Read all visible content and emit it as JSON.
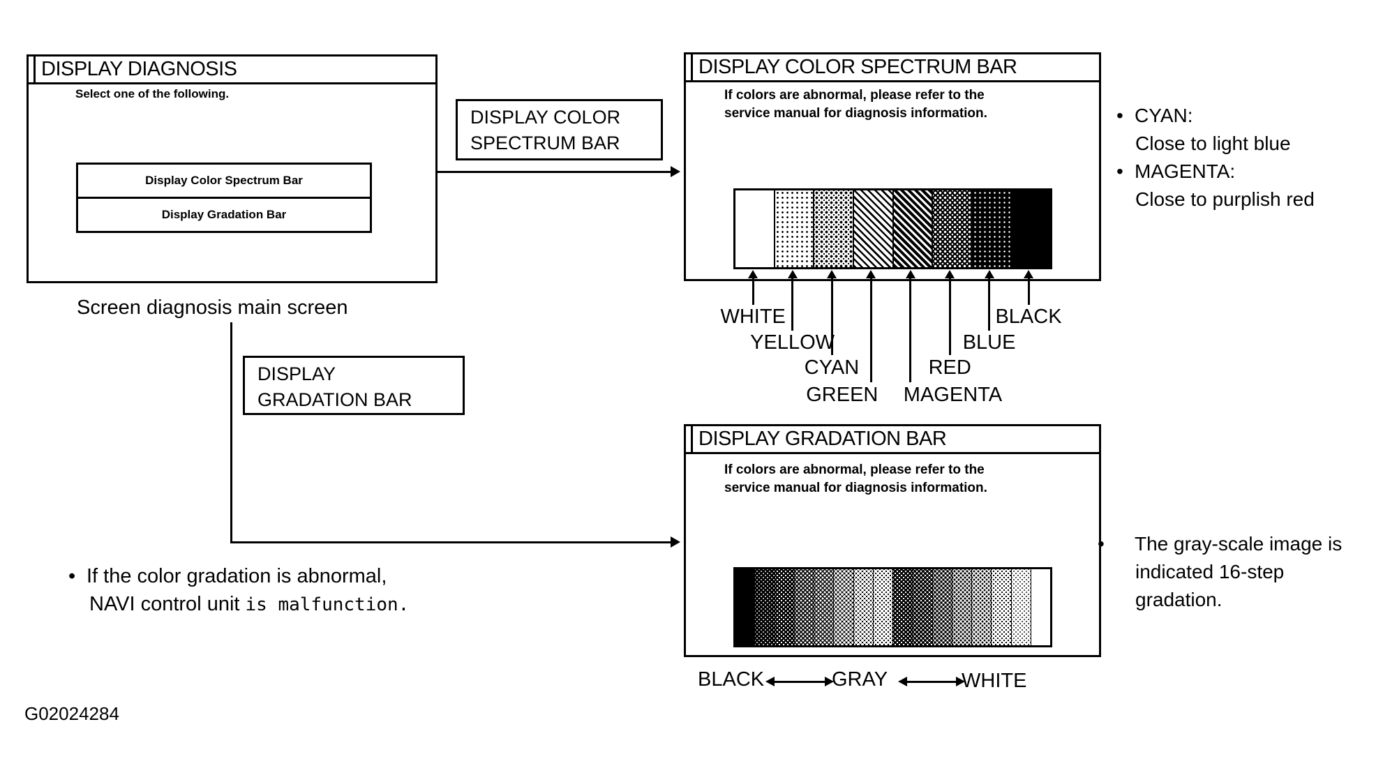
{
  "figure_id": "G02024284",
  "ui": {
    "bullet": "•"
  },
  "main_screen": {
    "title": "DISPLAY DIAGNOSIS",
    "prompt": "Select one of the following.",
    "buttons": [
      {
        "label": "Display Color Spectrum Bar"
      },
      {
        "label": "Display Gradation Bar"
      }
    ],
    "caption": "Screen diagnosis main screen"
  },
  "flow_labels": {
    "to_spectrum": {
      "line1": "DISPLAY COLOR",
      "line2": "SPECTRUM BAR"
    },
    "to_gradation": {
      "line1": "DISPLAY",
      "line2": "GRADATION BAR"
    }
  },
  "spectrum_screen": {
    "title": "DISPLAY COLOR SPECTRUM BAR",
    "body_line1": "If colors are abnormal, please refer to the",
    "body_line2": "service manual for diagnosis information.",
    "segments": [
      {
        "label": "WHITE",
        "shade_level": 0
      },
      {
        "label": "YELLOW",
        "shade_level": 1
      },
      {
        "label": "CYAN",
        "shade_level": 2
      },
      {
        "label": "GREEN",
        "shade_level": 3
      },
      {
        "label": "MAGENTA",
        "shade_level": 4
      },
      {
        "label": "RED",
        "shade_level": 5
      },
      {
        "label": "BLUE",
        "shade_level": 6
      },
      {
        "label": "BLACK",
        "shade_level": 7
      }
    ],
    "notes": [
      {
        "term": "CYAN:",
        "desc": "Close to light blue"
      },
      {
        "term": "MAGENTA:",
        "desc": "Close to purplish red"
      }
    ]
  },
  "gradation_screen": {
    "title": "DISPLAY GRADATION BAR",
    "body_line1": "If colors are abnormal, please refer to the",
    "body_line2": "service manual for diagnosis information.",
    "steps": 16,
    "scale_labels": [
      "BLACK",
      "GRAY",
      "WHITE"
    ],
    "note": "The gray-scale image is indicated 16-step gradation."
  },
  "malfunction_note": {
    "line1": "If the color gradation is abnormal,",
    "line2_normal": "NAVI control unit ",
    "line2_mono": "is malfunction."
  },
  "colors": {
    "ink": "#000000",
    "paper": "#ffffff"
  }
}
